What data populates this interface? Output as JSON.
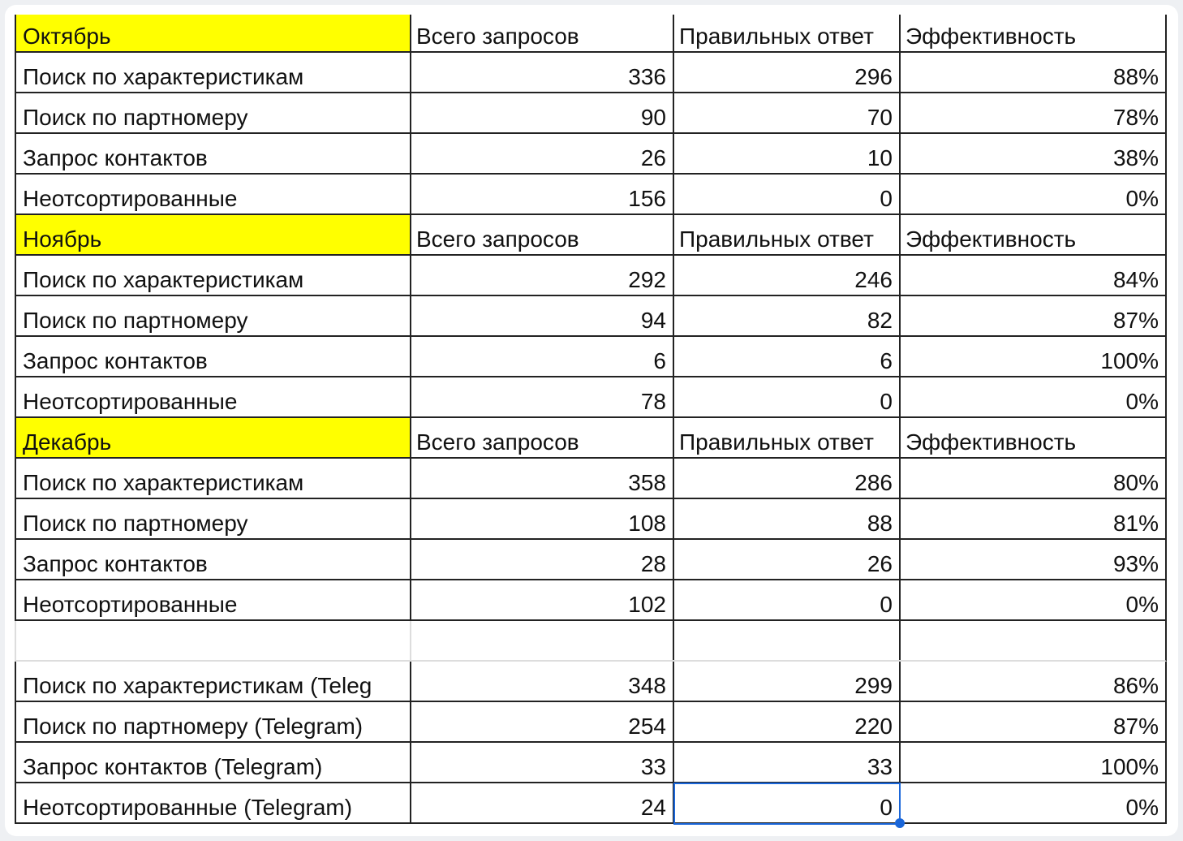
{
  "table": {
    "rows": [
      [
        "Октябрь",
        "Всего запросов",
        "Правильных ответ",
        "Эффективность"
      ],
      [
        "Поиск по характеристикам",
        336,
        296,
        "88%"
      ],
      [
        "Поиск по партномеру",
        90,
        70,
        "78%"
      ],
      [
        "Запрос контактов",
        26,
        10,
        "38%"
      ],
      [
        "Неотсортированные",
        156,
        0,
        "0%"
      ],
      [
        "Ноябрь",
        "Всего запросов",
        "Правильных ответ",
        "Эффективность"
      ],
      [
        "Поиск по характеристикам",
        292,
        246,
        "84%"
      ],
      [
        "Поиск по партномеру",
        94,
        82,
        "87%"
      ],
      [
        "Запрос контактов",
        6,
        6,
        "100%"
      ],
      [
        "Неотсортированные",
        78,
        0,
        "0%"
      ],
      [
        "Декабрь",
        "Всего запросов",
        "Правильных ответ",
        "Эффективность"
      ],
      [
        "Поиск по характеристикам",
        358,
        286,
        "80%"
      ],
      [
        "Поиск по партномеру",
        108,
        88,
        "81%"
      ],
      [
        "Запрос контактов",
        28,
        26,
        "93%"
      ],
      [
        "Неотсортированные",
        102,
        0,
        "0%"
      ],
      null,
      [
        "Поиск по характеристикам (Teleg",
        348,
        299,
        "86%"
      ],
      [
        "Поиск по партномеру  (Telegram)",
        254,
        220,
        "87%"
      ],
      [
        "Запрос контактов  (Telegram)",
        33,
        33,
        "100%"
      ],
      [
        "Неотсортированные  (Telegram)",
        24,
        0,
        "0%"
      ]
    ]
  }
}
